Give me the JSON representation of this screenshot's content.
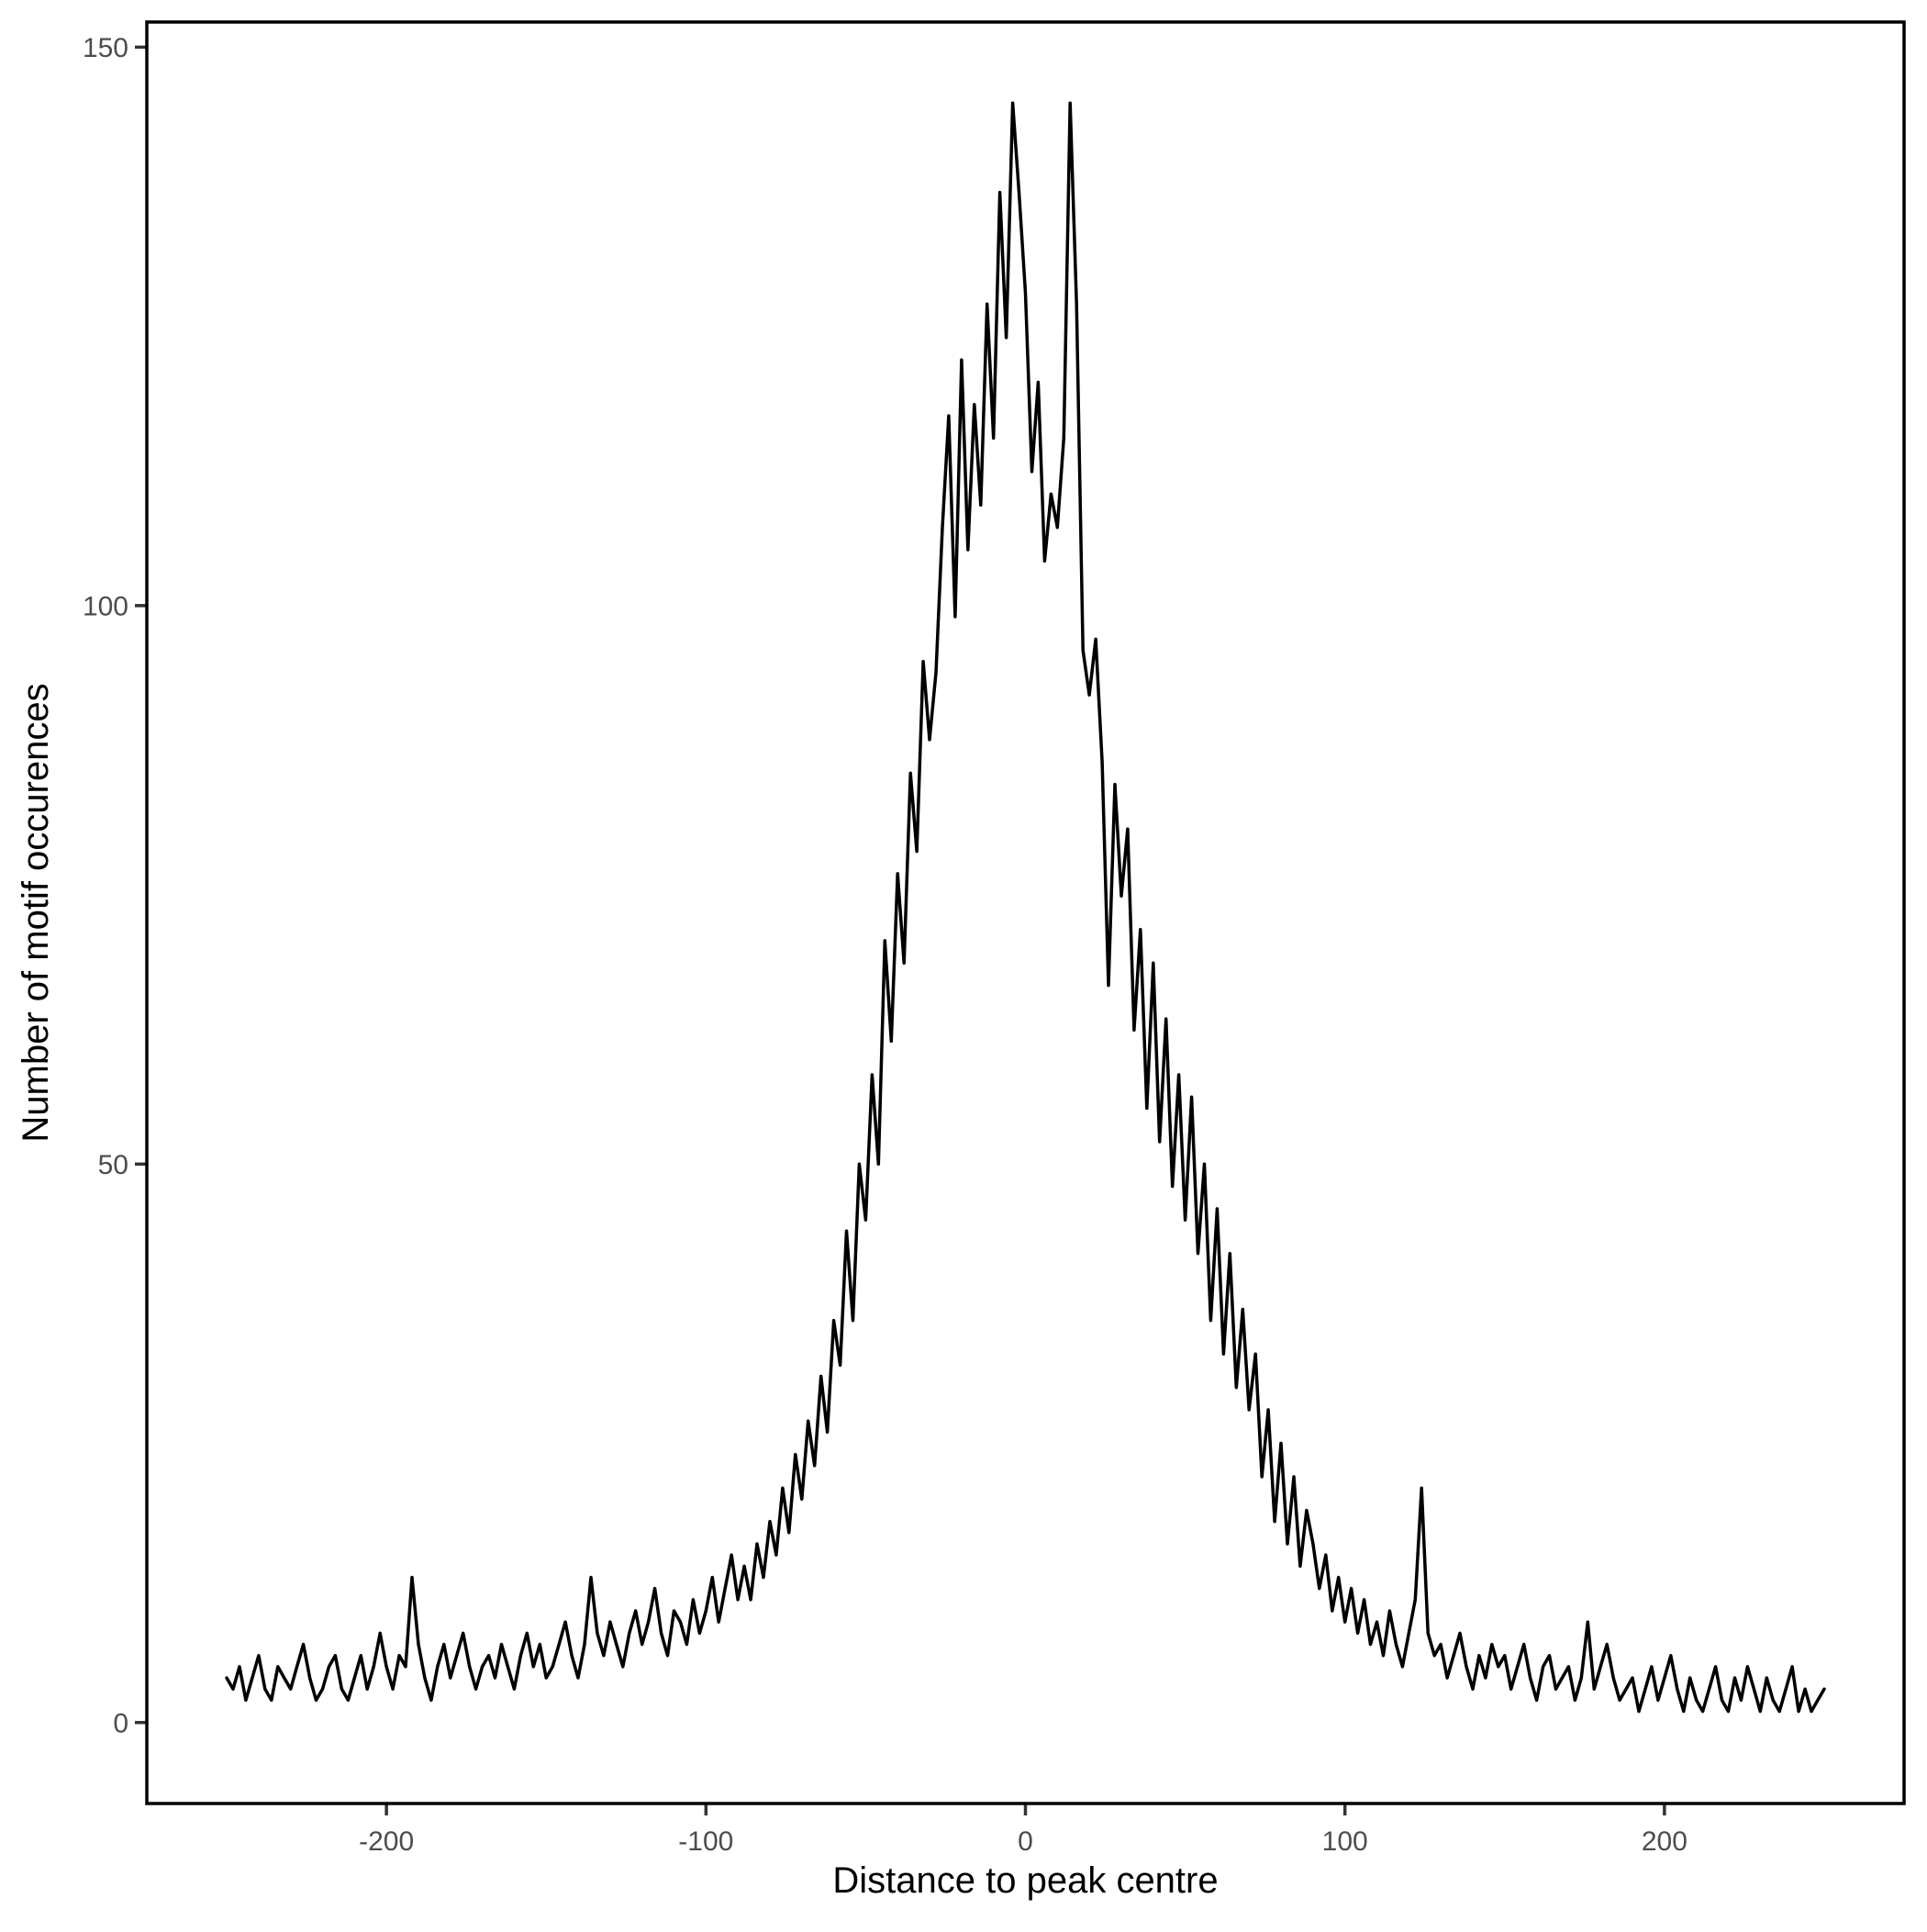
{
  "chart_data": {
    "type": "line",
    "title": "",
    "xlabel": "Distance to peak centre",
    "ylabel": "Number of motif occurences",
    "x_domain": [
      -275,
      275
    ],
    "y_domain": [
      -7.25,
      152.25
    ],
    "x_ticks": [
      {
        "value": -200,
        "label": "-200"
      },
      {
        "value": -100,
        "label": "-100"
      },
      {
        "value": 0,
        "label": "0"
      },
      {
        "value": 100,
        "label": "100"
      },
      {
        "value": 200,
        "label": "200"
      }
    ],
    "y_ticks": [
      {
        "value": 0,
        "label": "0"
      },
      {
        "value": 50,
        "label": "50"
      },
      {
        "value": 100,
        "label": "100"
      },
      {
        "value": 150,
        "label": "150"
      }
    ],
    "grid": false,
    "legend_position": "none",
    "colors": {
      "line": "#000000",
      "panel_border": "#000000",
      "tick_mark": "#333333",
      "tick_label": "#4d4d4d",
      "axis_title": "#000000",
      "background": "#ffffff"
    },
    "series": [
      {
        "name": "motif_occurrence_counts",
        "x_start": -250,
        "x_step": 2,
        "values": [
          4,
          3,
          5,
          2,
          4,
          6,
          3,
          2,
          5,
          4,
          3,
          5,
          7,
          4,
          2,
          3,
          5,
          6,
          3,
          2,
          4,
          6,
          3,
          5,
          8,
          5,
          3,
          6,
          5,
          13,
          7,
          4,
          2,
          5,
          7,
          4,
          6,
          8,
          5,
          3,
          5,
          6,
          4,
          7,
          5,
          3,
          6,
          8,
          5,
          7,
          4,
          5,
          7,
          9,
          6,
          4,
          7,
          13,
          8,
          6,
          9,
          7,
          5,
          8,
          10,
          7,
          9,
          12,
          8,
          6,
          10,
          9,
          7,
          11,
          8,
          10,
          13,
          9,
          12,
          15,
          11,
          14,
          11,
          16,
          13,
          18,
          15,
          21,
          17,
          24,
          20,
          27,
          23,
          31,
          26,
          36,
          32,
          44,
          36,
          50,
          45,
          58,
          50,
          70,
          61,
          76,
          68,
          85,
          78,
          95,
          88,
          94,
          107,
          117,
          99,
          122,
          105,
          118,
          109,
          127,
          115,
          137,
          124,
          145,
          137,
          128,
          112,
          120,
          104,
          110,
          107,
          115,
          145,
          127,
          96,
          92,
          97,
          86,
          66,
          84,
          74,
          80,
          62,
          71,
          55,
          68,
          52,
          63,
          48,
          58,
          45,
          56,
          42,
          50,
          36,
          46,
          33,
          42,
          30,
          37,
          28,
          33,
          22,
          28,
          18,
          25,
          16,
          22,
          14,
          19,
          16,
          12,
          15,
          10,
          13,
          9,
          12,
          8,
          11,
          7,
          9,
          6,
          10,
          7,
          5,
          8,
          11,
          21,
          8,
          6,
          7,
          4,
          6,
          8,
          5,
          3,
          6,
          4,
          7,
          5,
          6,
          3,
          5,
          7,
          4,
          2,
          5,
          6,
          3,
          4,
          5,
          2,
          4,
          9,
          3,
          5,
          7,
          4,
          2,
          3,
          4,
          1,
          3,
          5,
          2,
          4,
          6,
          3,
          1,
          4,
          2,
          1,
          3,
          5,
          2,
          1,
          4,
          2,
          5,
          3,
          1,
          4,
          2,
          1,
          3,
          5,
          1,
          3,
          1,
          2,
          3
        ]
      }
    ]
  }
}
